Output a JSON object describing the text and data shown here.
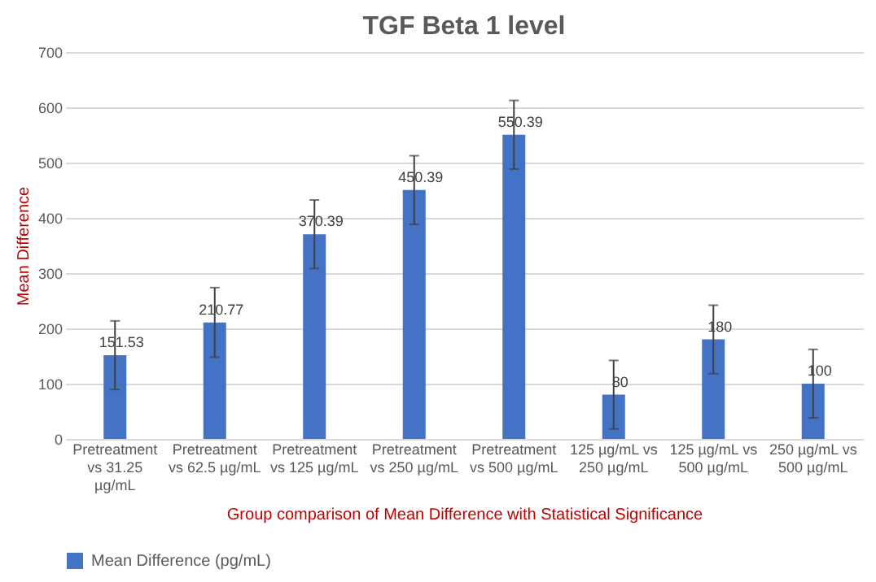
{
  "chart_data": {
    "type": "bar",
    "title": "TGF Beta 1 level",
    "xlabel": "Group comparison of Mean Difference with Statistical Significance",
    "ylabel": "Mean Difference",
    "categories": [
      "Pretreatment vs 31.25 µg/mL",
      "Pretreatment vs 62.5 µg/mL",
      "Pretreatment vs 125 µg/mL",
      "Pretreatment vs 250 µg/mL",
      "Pretreatment vs 500 µg/mL",
      "125 µg/mL vs 250 µg/mL",
      "125 µg/mL vs 500 µg/mL",
      "250 µg/mL vs 500 µg/mL"
    ],
    "series": [
      {
        "name": "Mean Difference (pg/mL)",
        "color": "#4472c4",
        "values": [
          151.53,
          210.77,
          370.39,
          450.39,
          550.39,
          80,
          180,
          100
        ],
        "errors": [
          62,
          63,
          62,
          62,
          62,
          62,
          62,
          62
        ]
      }
    ],
    "ylim": [
      0,
      700
    ],
    "yticks": [
      0,
      100,
      200,
      300,
      400,
      500,
      600,
      700
    ],
    "grid": "y",
    "legend": "bottom",
    "data_labels": true
  }
}
